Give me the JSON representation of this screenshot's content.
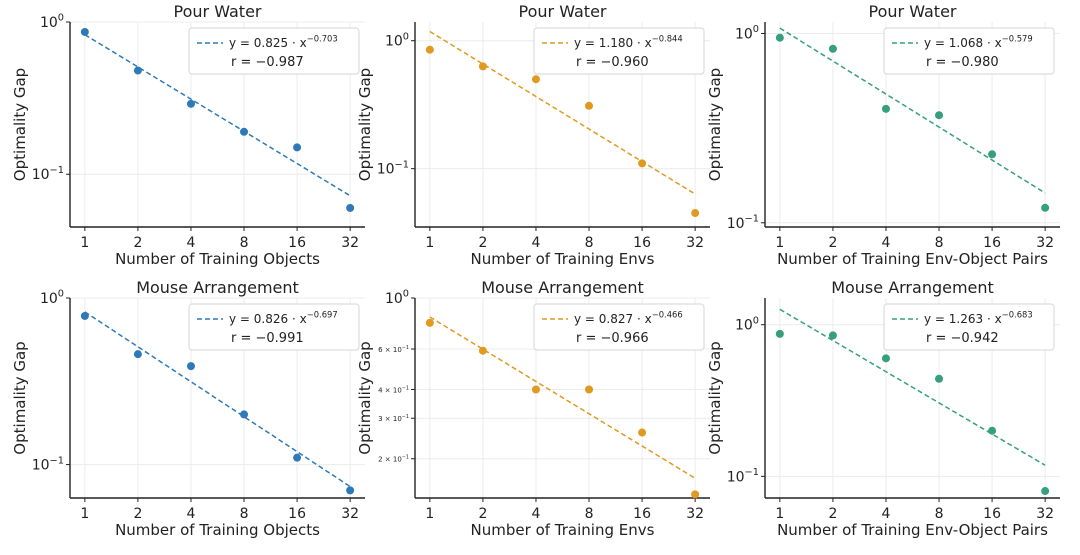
{
  "chart_data": [
    {
      "type": "scatter",
      "title": "Pour Water",
      "xlabel": "Number of Training Objects",
      "ylabel": "Optimality Gap",
      "xscale": "log2",
      "yscale": "log",
      "x": [
        1,
        2,
        4,
        8,
        16,
        32
      ],
      "x_tick_labels": [
        "1",
        "2",
        "4",
        "8",
        "16",
        "32"
      ],
      "y": [
        0.86,
        0.48,
        0.29,
        0.19,
        0.15,
        0.06
      ],
      "ylim": [
        0.045,
        1.0
      ],
      "y_ticks": [
        {
          "value": 1.0,
          "base": "10",
          "exp": "0"
        },
        {
          "value": 0.1,
          "base": "10",
          "exp": "−1"
        }
      ],
      "color": "#2e7ab8",
      "fit": {
        "a": 0.825,
        "b": -0.703
      },
      "legend_eq": {
        "prefix": "y = 0.825 · x",
        "exp": "−0.703"
      },
      "legend_r": "r = −0.987",
      "legend_position": "top-right"
    },
    {
      "type": "scatter",
      "title": "Pour Water",
      "xlabel": "Number of Training Envs",
      "ylabel": "Optimality Gap",
      "xscale": "log2",
      "yscale": "log",
      "x": [
        1,
        2,
        4,
        8,
        16,
        32
      ],
      "x_tick_labels": [
        "1",
        "2",
        "4",
        "8",
        "16",
        "32"
      ],
      "y": [
        0.85,
        0.63,
        0.5,
        0.31,
        0.11,
        0.045
      ],
      "ylim": [
        0.035,
        1.4
      ],
      "y_ticks": [
        {
          "value": 1.0,
          "base": "10",
          "exp": "0"
        },
        {
          "value": 0.1,
          "base": "10",
          "exp": "−1"
        }
      ],
      "color": "#e09a1f",
      "fit": {
        "a": 1.18,
        "b": -0.844
      },
      "legend_eq": {
        "prefix": "y = 1.180 · x",
        "exp": "−0.844"
      },
      "legend_r": "r = −0.960",
      "legend_position": "top-right"
    },
    {
      "type": "scatter",
      "title": "Pour Water",
      "xlabel": "Number of Training Env-Object Pairs",
      "ylabel": "Optimality Gap",
      "xscale": "log2",
      "yscale": "log",
      "x": [
        1,
        2,
        4,
        8,
        16,
        32
      ],
      "x_tick_labels": [
        "1",
        "2",
        "4",
        "8",
        "16",
        "32"
      ],
      "y": [
        0.95,
        0.83,
        0.4,
        0.37,
        0.23,
        0.12
      ],
      "ylim": [
        0.095,
        1.15
      ],
      "y_ticks": [
        {
          "value": 1.0,
          "base": "10",
          "exp": "0"
        },
        {
          "value": 0.1,
          "base": "10",
          "exp": "−1"
        }
      ],
      "color": "#35a07a",
      "fit": {
        "a": 1.068,
        "b": -0.579
      },
      "legend_eq": {
        "prefix": "y = 1.068 · x",
        "exp": "−0.579"
      },
      "legend_r": "r = −0.980",
      "legend_position": "top-right"
    },
    {
      "type": "scatter",
      "title": "Mouse Arrangement",
      "xlabel": "Number of Training Objects",
      "ylabel": "Optimality Gap",
      "xscale": "log2",
      "yscale": "log",
      "x": [
        1,
        2,
        4,
        8,
        16,
        32
      ],
      "x_tick_labels": [
        "1",
        "2",
        "4",
        "8",
        "16",
        "32"
      ],
      "y": [
        0.78,
        0.46,
        0.39,
        0.2,
        0.11,
        0.07
      ],
      "ylim": [
        0.063,
        1.0
      ],
      "y_ticks": [
        {
          "value": 1.0,
          "base": "10",
          "exp": "0"
        },
        {
          "value": 0.1,
          "base": "10",
          "exp": "−1"
        }
      ],
      "color": "#2e7ab8",
      "fit": {
        "a": 0.826,
        "b": -0.697
      },
      "legend_eq": {
        "prefix": "y = 0.826 · x",
        "exp": "−0.697"
      },
      "legend_r": "r = −0.991",
      "legend_position": "top-right"
    },
    {
      "type": "scatter",
      "title": "Mouse Arrangement",
      "xlabel": "Number of Training Envs",
      "ylabel": "Optimality Gap",
      "xscale": "log2",
      "yscale": "log",
      "x": [
        1,
        2,
        4,
        8,
        16,
        32
      ],
      "x_tick_labels": [
        "1",
        "2",
        "4",
        "8",
        "16",
        "32"
      ],
      "y": [
        0.78,
        0.59,
        0.4,
        0.4,
        0.26,
        0.14
      ],
      "ylim": [
        0.135,
        1.0
      ],
      "y_ticks": [
        {
          "value": 1.0,
          "base": "10",
          "exp": "0"
        },
        {
          "value": 0.6,
          "base": "6 × 10",
          "exp": "−1",
          "small": true
        },
        {
          "value": 0.4,
          "base": "4 × 10",
          "exp": "−1",
          "small": true
        },
        {
          "value": 0.3,
          "base": "3 × 10",
          "exp": "−1",
          "small": true
        },
        {
          "value": 0.2,
          "base": "2 × 10",
          "exp": "−1",
          "small": true
        }
      ],
      "color": "#e09a1f",
      "fit": {
        "a": 0.827,
        "b": -0.466
      },
      "legend_eq": {
        "prefix": "y = 0.827 · x",
        "exp": "−0.466"
      },
      "legend_r": "r = −0.966",
      "legend_position": "top-right"
    },
    {
      "type": "scatter",
      "title": "Mouse Arrangement",
      "xlabel": "Number of Training Env-Object Pairs",
      "ylabel": "Optimality Gap",
      "xscale": "log2",
      "yscale": "log",
      "x": [
        1,
        2,
        4,
        8,
        16,
        32
      ],
      "x_tick_labels": [
        "1",
        "2",
        "4",
        "8",
        "16",
        "32"
      ],
      "y": [
        0.87,
        0.85,
        0.6,
        0.44,
        0.2,
        0.08
      ],
      "ylim": [
        0.072,
        1.5
      ],
      "y_ticks": [
        {
          "value": 1.0,
          "base": "10",
          "exp": "0"
        },
        {
          "value": 0.1,
          "base": "10",
          "exp": "−1"
        }
      ],
      "color": "#35a07a",
      "fit": {
        "a": 1.263,
        "b": -0.683
      },
      "legend_eq": {
        "prefix": "y = 1.263 · x",
        "exp": "−0.683"
      },
      "legend_r": "r = −0.942",
      "legend_position": "top-right"
    }
  ]
}
